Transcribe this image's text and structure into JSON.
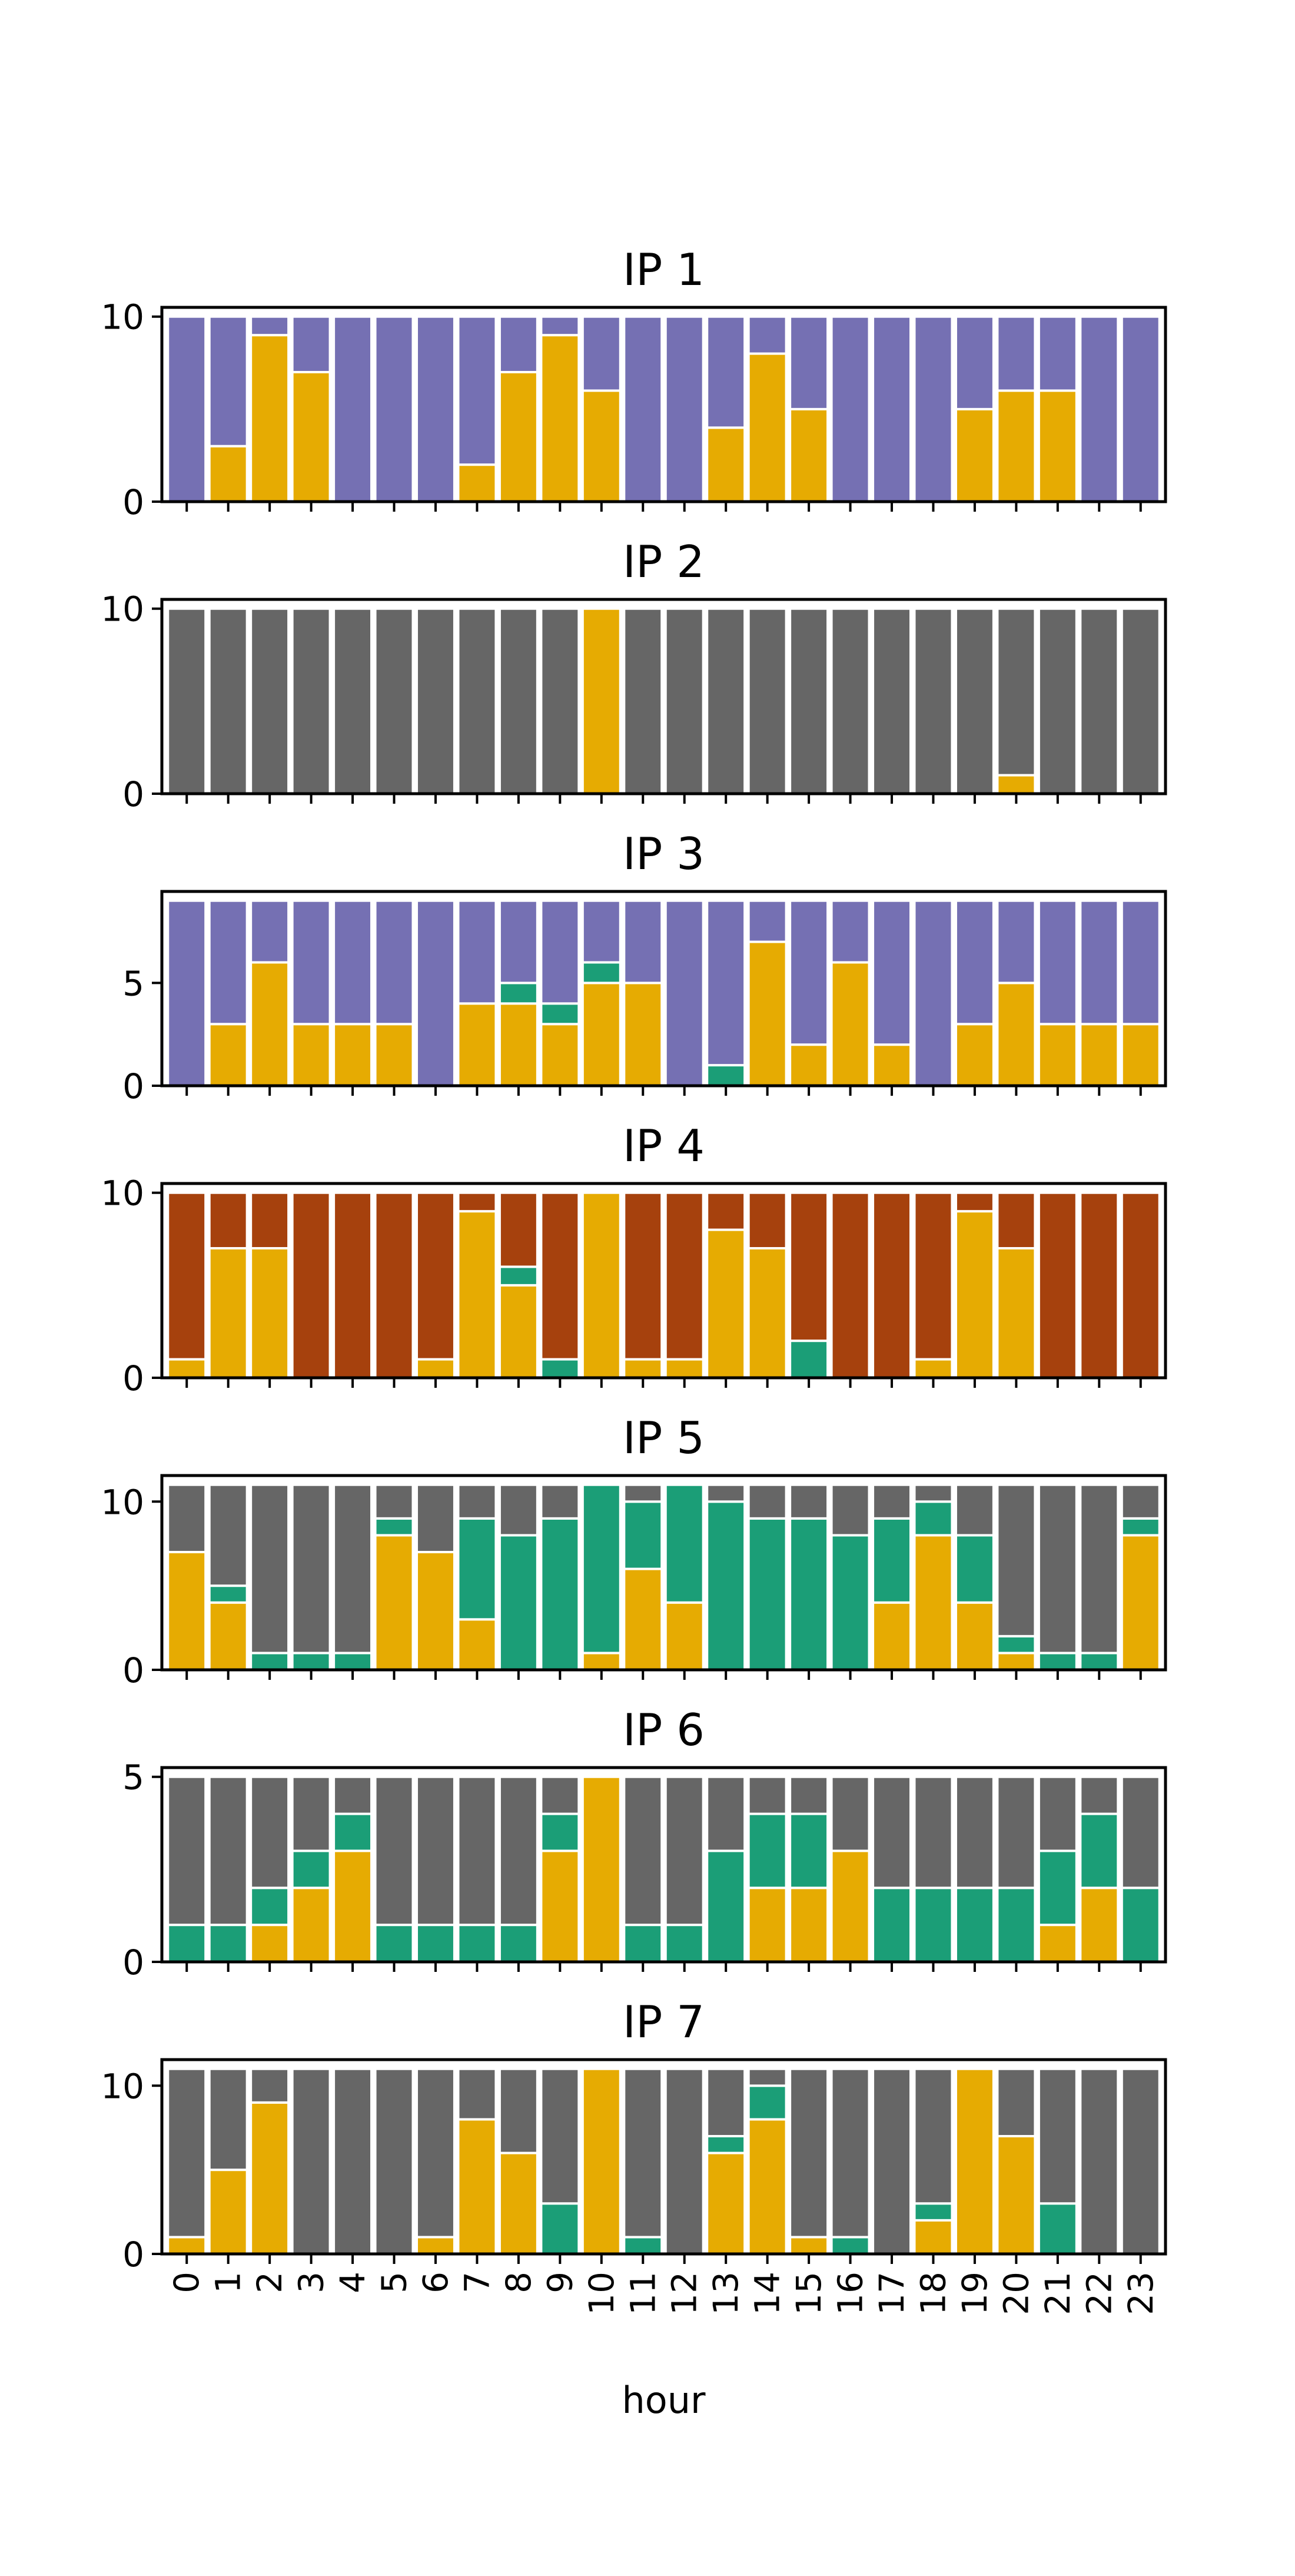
{
  "chart_data": {
    "type": "bar",
    "stacked": true,
    "xlabel": "hour",
    "categories": [
      "0",
      "1",
      "2",
      "3",
      "4",
      "5",
      "6",
      "7",
      "8",
      "9",
      "10",
      "11",
      "12",
      "13",
      "14",
      "15",
      "16",
      "17",
      "18",
      "19",
      "20",
      "21",
      "22",
      "23"
    ],
    "colors": {
      "gold": "#e6ab02",
      "green": "#1b9e77",
      "purple": "#7570b3",
      "rust": "#a6410d",
      "gray": "#666666"
    },
    "panels": [
      {
        "title": "IP 1",
        "ylim": [
          0,
          10.5
        ],
        "yticks": [
          0,
          10
        ],
        "series": [
          {
            "color": "gold",
            "values": [
              0,
              3,
              9,
              7,
              0,
              0,
              0,
              2,
              7,
              9,
              6,
              0,
              0,
              4,
              8,
              5,
              0,
              0,
              0,
              5,
              6,
              6,
              0,
              0
            ]
          },
          {
            "color": "purple",
            "values": [
              10,
              7,
              1,
              3,
              10,
              10,
              10,
              8,
              3,
              1,
              4,
              10,
              10,
              6,
              2,
              5,
              10,
              10,
              10,
              5,
              4,
              4,
              10,
              10
            ]
          }
        ]
      },
      {
        "title": "IP 2",
        "ylim": [
          0,
          10.5
        ],
        "yticks": [
          0,
          10
        ],
        "series": [
          {
            "color": "gold",
            "values": [
              0,
              0,
              0,
              0,
              0,
              0,
              0,
              0,
              0,
              0,
              10,
              0,
              0,
              0,
              0,
              0,
              0,
              0,
              0,
              0,
              1,
              0,
              0,
              0
            ]
          },
          {
            "color": "gray",
            "values": [
              10,
              10,
              10,
              10,
              10,
              10,
              10,
              10,
              10,
              10,
              0,
              10,
              10,
              10,
              10,
              10,
              10,
              10,
              10,
              10,
              9,
              10,
              10,
              10
            ]
          }
        ]
      },
      {
        "title": "IP 3",
        "ylim": [
          0,
          9.45
        ],
        "yticks": [
          0,
          5
        ],
        "series": [
          {
            "color": "gold",
            "values": [
              0,
              3,
              6,
              3,
              3,
              3,
              0,
              4,
              4,
              3,
              5,
              5,
              0,
              0,
              7,
              2,
              6,
              2,
              0,
              3,
              5,
              3,
              3,
              3
            ]
          },
          {
            "color": "green",
            "values": [
              0,
              0,
              0,
              0,
              0,
              0,
              0,
              0,
              1,
              1,
              1,
              0,
              0,
              1,
              0,
              0,
              0,
              0,
              0,
              0,
              0,
              0,
              0,
              0
            ]
          },
          {
            "color": "purple",
            "values": [
              9,
              6,
              3,
              6,
              6,
              6,
              9,
              5,
              4,
              5,
              3,
              4,
              9,
              8,
              2,
              7,
              3,
              7,
              9,
              6,
              4,
              6,
              6,
              6
            ]
          }
        ]
      },
      {
        "title": "IP 4",
        "ylim": [
          0,
          10.5
        ],
        "yticks": [
          0,
          10
        ],
        "series": [
          {
            "color": "gold",
            "values": [
              1,
              7,
              7,
              0,
              0,
              0,
              1,
              9,
              5,
              0,
              10,
              1,
              1,
              8,
              7,
              0,
              0,
              0,
              1,
              9,
              7,
              0,
              0,
              0
            ]
          },
          {
            "color": "green",
            "values": [
              0,
              0,
              0,
              0,
              0,
              0,
              0,
              0,
              1,
              1,
              0,
              0,
              0,
              0,
              0,
              2,
              0,
              0,
              0,
              0,
              0,
              0,
              0,
              0
            ]
          },
          {
            "color": "rust",
            "values": [
              9,
              3,
              3,
              10,
              10,
              10,
              9,
              1,
              4,
              9,
              0,
              9,
              9,
              2,
              3,
              8,
              10,
              10,
              9,
              1,
              3,
              10,
              10,
              10
            ]
          }
        ]
      },
      {
        "title": "IP 5",
        "ylim": [
          0,
          11.55
        ],
        "yticks": [
          0,
          10
        ],
        "series": [
          {
            "color": "gold",
            "values": [
              7,
              4,
              0,
              0,
              0,
              8,
              7,
              3,
              0,
              0,
              1,
              6,
              4,
              0,
              0,
              0,
              0,
              4,
              8,
              4,
              1,
              0,
              0,
              8
            ]
          },
          {
            "color": "green",
            "values": [
              0,
              1,
              1,
              1,
              1,
              1,
              0,
              6,
              8,
              9,
              10,
              4,
              7,
              10,
              9,
              9,
              8,
              5,
              2,
              4,
              1,
              1,
              1,
              1
            ]
          },
          {
            "color": "gray",
            "values": [
              4,
              6,
              10,
              10,
              10,
              2,
              4,
              2,
              3,
              2,
              0,
              1,
              0,
              1,
              2,
              2,
              3,
              2,
              1,
              3,
              9,
              10,
              10,
              2
            ]
          }
        ]
      },
      {
        "title": "IP 6",
        "ylim": [
          0,
          5.25
        ],
        "yticks": [
          0,
          5
        ],
        "series": [
          {
            "color": "gold",
            "values": [
              0,
              0,
              1,
              2,
              3,
              0,
              0,
              0,
              0,
              3,
              5,
              0,
              0,
              0,
              2,
              2,
              3,
              0,
              0,
              0,
              0,
              1,
              2,
              0
            ]
          },
          {
            "color": "green",
            "values": [
              1,
              1,
              1,
              1,
              1,
              1,
              1,
              1,
              1,
              1,
              0,
              1,
              1,
              3,
              2,
              2,
              0,
              2,
              2,
              2,
              2,
              2,
              2,
              2
            ]
          },
          {
            "color": "gray",
            "values": [
              4,
              4,
              3,
              2,
              1,
              4,
              4,
              4,
              4,
              1,
              0,
              4,
              4,
              2,
              1,
              1,
              2,
              3,
              3,
              3,
              3,
              2,
              1,
              3
            ]
          }
        ]
      },
      {
        "title": "IP 7",
        "ylim": [
          0,
          11.55
        ],
        "yticks": [
          0,
          10
        ],
        "series": [
          {
            "color": "gold",
            "values": [
              1,
              5,
              9,
              0,
              0,
              0,
              1,
              8,
              6,
              0,
              11,
              0,
              0,
              6,
              8,
              1,
              0,
              0,
              2,
              11,
              7,
              0,
              0,
              0
            ]
          },
          {
            "color": "green",
            "values": [
              0,
              0,
              0,
              0,
              0,
              0,
              0,
              0,
              0,
              3,
              0,
              1,
              0,
              1,
              2,
              0,
              1,
              0,
              1,
              0,
              0,
              3,
              0,
              0
            ]
          },
          {
            "color": "gray",
            "values": [
              10,
              6,
              2,
              11,
              11,
              11,
              10,
              3,
              5,
              8,
              0,
              10,
              11,
              4,
              1,
              10,
              10,
              11,
              8,
              0,
              4,
              8,
              11,
              11
            ]
          }
        ]
      }
    ]
  }
}
